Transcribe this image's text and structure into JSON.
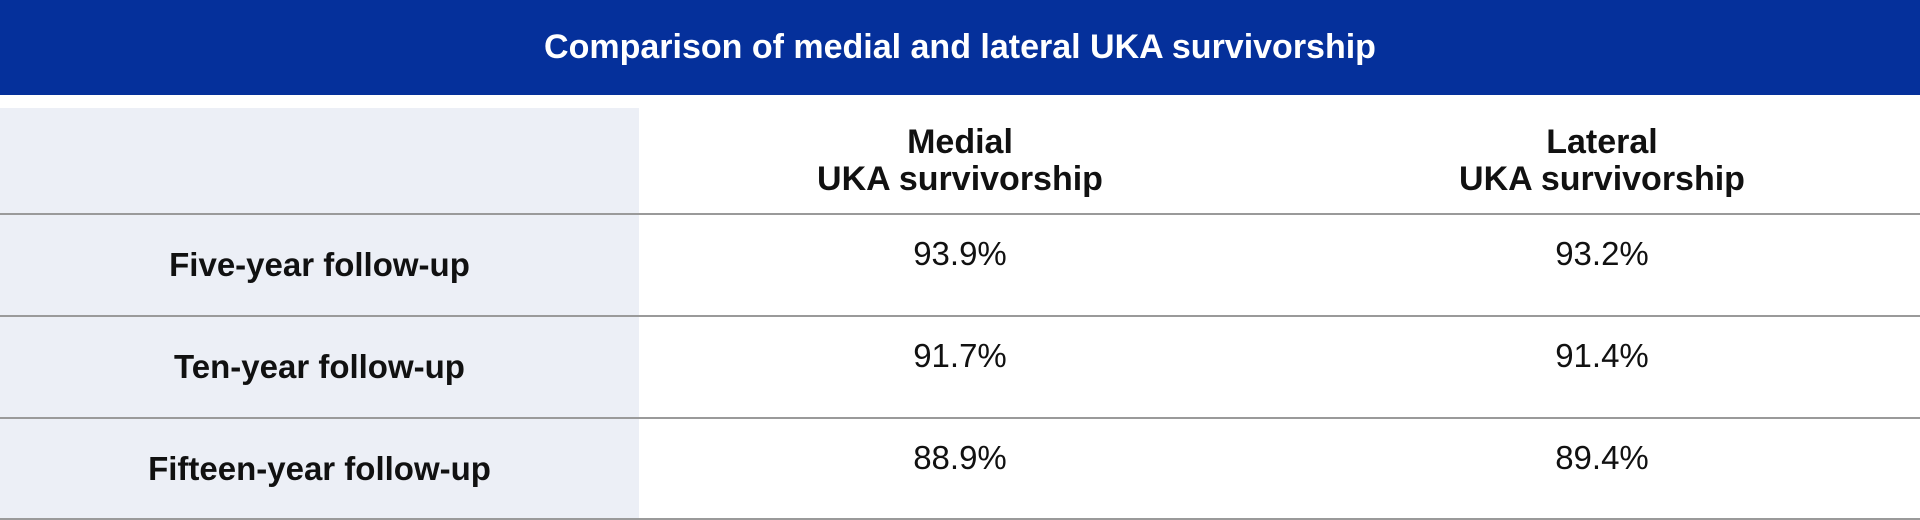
{
  "header": {
    "title": "Comparison of medial and lateral UKA survivorship"
  },
  "table": {
    "columns": [
      [
        "Medial",
        "UKA survivorship"
      ],
      [
        "Lateral",
        "UKA survivorship"
      ]
    ],
    "rows": [
      [
        "Five-year follow-up",
        "93.9%",
        "93.2%"
      ],
      [
        "Ten-year follow-up",
        "91.7%",
        "91.4%"
      ],
      [
        "Fifteen-year follow-up",
        "88.9%",
        "89.4%"
      ]
    ]
  }
}
